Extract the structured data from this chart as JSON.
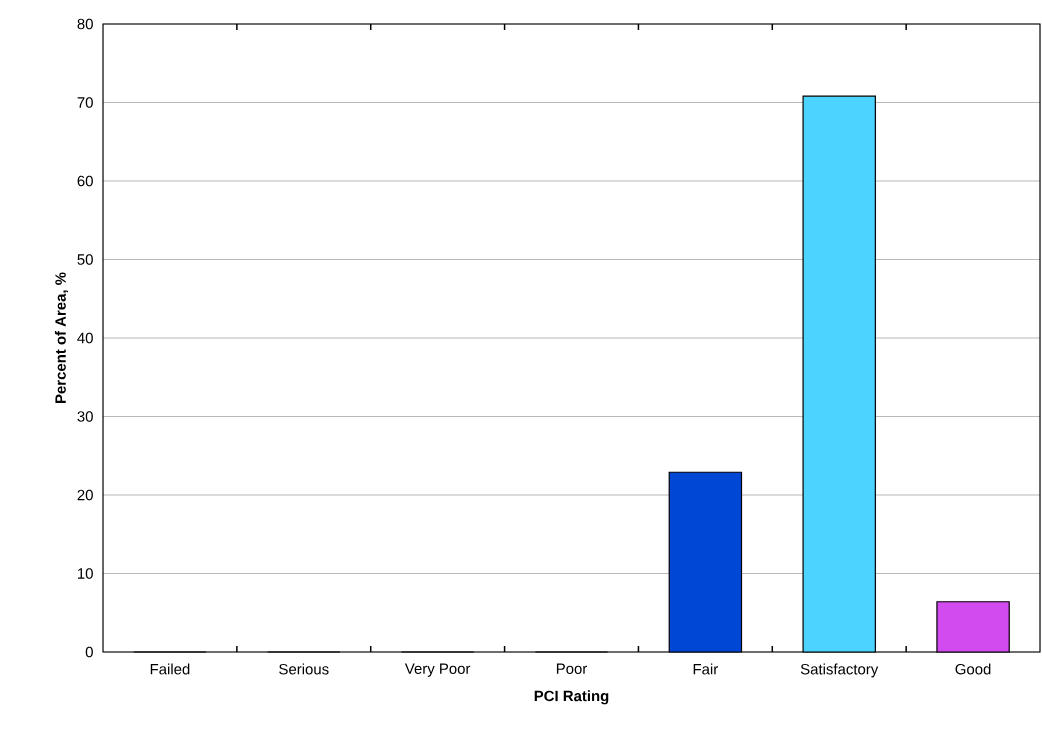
{
  "chart_data": {
    "type": "bar",
    "xlabel": "PCI Rating",
    "ylabel": "Percent of Area, %",
    "categories": [
      "Failed",
      "Serious",
      "Very Poor",
      "Poor",
      "Fair",
      "Satisfactory",
      "Good"
    ],
    "values": [
      0,
      0,
      0,
      0,
      22.9,
      70.8,
      6.4
    ],
    "colors": [
      "#808080",
      "#ff0000",
      "#ff8000",
      "#ffff00",
      "#0047d6",
      "#4cd3ff",
      "#d24bef"
    ],
    "ylim": [
      0,
      80
    ],
    "yticks": [
      0,
      10,
      20,
      30,
      40,
      50,
      60,
      70,
      80
    ],
    "grid": "y"
  }
}
